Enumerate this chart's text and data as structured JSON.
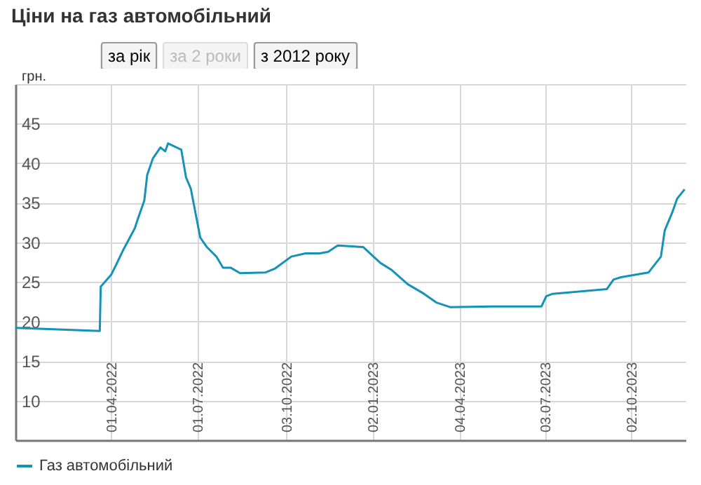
{
  "chart_data": {
    "type": "line",
    "title": "Ціни на газ автомобільний",
    "annotations": [
      "за рік",
      "за 2 роки",
      "з 2012 року"
    ],
    "ylabel": "грн.",
    "x": [
      "2021-12-21",
      "2022-03-20",
      "2022-03-21",
      "2022-04-01",
      "2022-04-06",
      "2022-04-14",
      "2022-04-26",
      "2022-04-29",
      "2022-05-06",
      "2022-05-09",
      "2022-05-15",
      "2022-05-23",
      "2022-05-28",
      "2022-05-31",
      "2022-06-07",
      "2022-06-14",
      "2022-06-19",
      "2022-06-24",
      "2022-07-04",
      "2022-07-11",
      "2022-07-21",
      "2022-07-28",
      "2022-08-05",
      "2022-08-15",
      "2022-09-11",
      "2022-09-21",
      "2022-10-08",
      "2022-10-23",
      "2022-11-07",
      "2022-11-16",
      "2022-11-26",
      "2022-12-23",
      "2023-01-10",
      "2023-01-22",
      "2023-02-08",
      "2023-02-25",
      "2023-03-10",
      "2023-03-25",
      "2023-05-08",
      "2023-06-29",
      "2023-07-04",
      "2023-07-11",
      "2023-09-06",
      "2023-09-13",
      "2023-09-21",
      "2023-10-20",
      "2023-11-02",
      "2023-11-06",
      "2023-11-14",
      "2023-11-19",
      "2023-11-27"
    ],
    "series": [
      {
        "name": "Газ автомобільний",
        "color": "#1592b8",
        "values": [
          19.2,
          18.8,
          24.4,
          25.9,
          27.1,
          29.1,
          31.8,
          32.9,
          35.3,
          38.5,
          40.6,
          42.0,
          41.5,
          42.5,
          42.1,
          41.7,
          38.2,
          36.8,
          30.6,
          29.4,
          28.2,
          26.8,
          26.8,
          26.1,
          26.2,
          26.7,
          28.2,
          28.6,
          28.6,
          28.8,
          29.6,
          29.4,
          27.4,
          26.5,
          24.7,
          23.5,
          22.4,
          21.8,
          21.9,
          21.9,
          23.2,
          23.5,
          24.1,
          25.3,
          25.6,
          26.2,
          28.2,
          31.5,
          33.8,
          35.5,
          36.7
        ]
      }
    ],
    "xlim": [
      "2021-12-21",
      "2023-11-28"
    ],
    "xticks": [
      {
        "value": "2022-04-01",
        "label": "01.04.2022"
      },
      {
        "value": "2022-07-01",
        "label": "01.07.2022"
      },
      {
        "value": "2022-10-03",
        "label": "03.10.2022"
      },
      {
        "value": "2023-01-02",
        "label": "02.01.2023"
      },
      {
        "value": "2023-04-04",
        "label": "04.04.2023"
      },
      {
        "value": "2023-07-03",
        "label": "03.07.2023"
      },
      {
        "value": "2023-10-02",
        "label": "02.10.2023"
      }
    ],
    "ylim": [
      5,
      50
    ],
    "yticks": [
      10,
      15,
      20,
      25,
      30,
      35,
      40,
      45,
      {
        "value": 50,
        "label": null
      }
    ],
    "grid": true,
    "legend": "bottom left",
    "marker": "none",
    "line_style": "solid"
  }
}
